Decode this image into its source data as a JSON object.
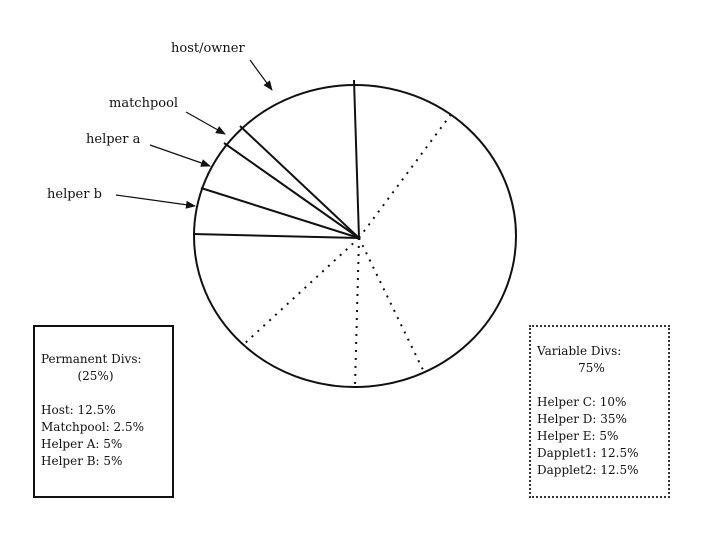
{
  "labels": {
    "host_owner": "host/owner",
    "matchpool": "matchpool",
    "helper_a": "helper a",
    "helper_b": "helper b"
  },
  "permanent_box": {
    "title": "Permanent Divs:",
    "percent": "(25%)",
    "lines": [
      "Host: 12.5%",
      "Matchpool: 2.5%",
      "Helper A: 5%",
      "Helper B: 5%"
    ]
  },
  "variable_box": {
    "title": "Variable Divs:",
    "percent": "75%",
    "lines": [
      "Helper C: 10%",
      "Helper D: 35%",
      "Helper E: 5%",
      "Dapplet1: 12.5%",
      "Dapplet2: 12.5%"
    ]
  },
  "chart_data": {
    "type": "pie",
    "solid_divisions_pct": [
      12.5,
      2.5,
      5,
      5
    ],
    "dotted_divisions_pct": [
      10,
      35,
      5,
      12.5,
      12.5
    ],
    "colors": {
      "stroke": "#111111",
      "fill": "#ffffff"
    }
  }
}
